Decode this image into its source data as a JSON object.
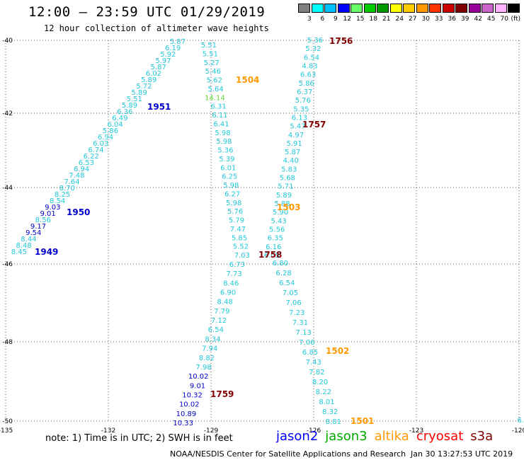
{
  "header": {
    "title": "12:00 — 23:59 UTC 01/29/2019",
    "subtitle": "12 hour collection of altimeter wave heights"
  },
  "legend": {
    "unit": "(ft)",
    "bins": [
      {
        "label": "3",
        "color": "#808080"
      },
      {
        "label": "6",
        "color": "#00ffff"
      },
      {
        "label": "9",
        "color": "#00bfff"
      },
      {
        "label": "12",
        "color": "#0000ff"
      },
      {
        "label": "15",
        "color": "#66ff66"
      },
      {
        "label": "18",
        "color": "#00cc00"
      },
      {
        "label": "21",
        "color": "#009900"
      },
      {
        "label": "24",
        "color": "#ffff00"
      },
      {
        "label": "27",
        "color": "#ffcc00"
      },
      {
        "label": "30",
        "color": "#ff9900"
      },
      {
        "label": "33",
        "color": "#ff3300"
      },
      {
        "label": "36",
        "color": "#cc0000"
      },
      {
        "label": "39",
        "color": "#800000"
      },
      {
        "label": "42",
        "color": "#990099"
      },
      {
        "label": "45",
        "color": "#cc66cc"
      },
      {
        "label": "70",
        "color": "#ffb3ff"
      },
      {
        "label": "",
        "color": "#000000"
      }
    ]
  },
  "map": {
    "lon_ticks": [
      "-135",
      "-132",
      "-129",
      "-126",
      "-123",
      "-120"
    ],
    "lat_ticks": [
      "-40",
      "-42",
      "-44",
      "-46",
      "-48",
      "-50"
    ],
    "colors": {
      "cyan": "#22c8d8",
      "blue": "#0000cc",
      "green": "#66dd33",
      "orange": "#ff9900",
      "maroon": "#800000"
    },
    "track_1951": [
      {
        "v": "5.87",
        "c": "cyan"
      },
      {
        "v": "6.19",
        "c": "cyan"
      },
      {
        "v": "5.92",
        "c": "cyan"
      },
      {
        "v": "5.97",
        "c": "cyan"
      },
      {
        "v": "5.87",
        "c": "cyan"
      },
      {
        "v": "6.02",
        "c": "cyan"
      },
      {
        "v": "5.89",
        "c": "cyan"
      },
      {
        "v": "5.72",
        "c": "cyan"
      },
      {
        "v": "5.89",
        "c": "cyan"
      },
      {
        "v": "5.51",
        "c": "cyan"
      },
      {
        "v": "5.89",
        "c": "cyan"
      },
      {
        "v": "6.36",
        "c": "cyan"
      },
      {
        "v": "6.49",
        "c": "cyan"
      },
      {
        "v": "6.04",
        "c": "cyan"
      },
      {
        "v": "5.86",
        "c": "cyan"
      },
      {
        "v": "6.94",
        "c": "cyan"
      },
      {
        "v": "6.03",
        "c": "cyan"
      },
      {
        "v": "6.74",
        "c": "cyan"
      },
      {
        "v": "6.22",
        "c": "cyan"
      },
      {
        "v": "6.53",
        "c": "cyan"
      },
      {
        "v": "6.94",
        "c": "cyan"
      },
      {
        "v": "7.48",
        "c": "cyan"
      },
      {
        "v": "7.64",
        "c": "cyan"
      },
      {
        "v": "8.70",
        "c": "cyan"
      },
      {
        "v": "8.25",
        "c": "cyan"
      },
      {
        "v": "8.54",
        "c": "cyan"
      },
      {
        "v": "9.03",
        "c": "blue"
      },
      {
        "v": "9.01",
        "c": "blue"
      },
      {
        "v": "8.56",
        "c": "cyan"
      },
      {
        "v": "9.17",
        "c": "blue"
      },
      {
        "v": "9.54",
        "c": "blue"
      },
      {
        "v": "8.44",
        "c": "cyan"
      },
      {
        "v": "8.48",
        "c": "cyan"
      },
      {
        "v": "8.45",
        "c": "cyan"
      }
    ],
    "track_1504": [
      {
        "v": "5.51",
        "c": "cyan"
      },
      {
        "v": "5.51",
        "c": "cyan"
      },
      {
        "v": "5.27",
        "c": "cyan"
      },
      {
        "v": "5.46",
        "c": "cyan"
      },
      {
        "v": "5.62",
        "c": "cyan"
      },
      {
        "v": "5.64",
        "c": "cyan"
      },
      {
        "v": "14.14",
        "c": "green"
      },
      {
        "v": "6.31",
        "c": "cyan"
      },
      {
        "v": "6.11",
        "c": "cyan"
      },
      {
        "v": "6.41",
        "c": "cyan"
      },
      {
        "v": "5.98",
        "c": "cyan"
      },
      {
        "v": "5.98",
        "c": "cyan"
      },
      {
        "v": "5.36",
        "c": "cyan"
      },
      {
        "v": "5.39",
        "c": "cyan"
      },
      {
        "v": "6.01",
        "c": "cyan"
      },
      {
        "v": "6.25",
        "c": "cyan"
      },
      {
        "v": "5.98",
        "c": "cyan"
      },
      {
        "v": "6.27",
        "c": "cyan"
      },
      {
        "v": "5.98",
        "c": "cyan"
      },
      {
        "v": "5.76",
        "c": "cyan"
      },
      {
        "v": "5.79",
        "c": "cyan"
      },
      {
        "v": "7.47",
        "c": "cyan"
      },
      {
        "v": "5.85",
        "c": "cyan"
      },
      {
        "v": "5.52",
        "c": "cyan"
      },
      {
        "v": "7.03",
        "c": "cyan"
      }
    ],
    "track_1759": [
      {
        "v": "6.73",
        "c": "cyan"
      },
      {
        "v": "7.73",
        "c": "cyan"
      },
      {
        "v": "8.46",
        "c": "cyan"
      },
      {
        "v": "6.90",
        "c": "cyan"
      },
      {
        "v": "8.48",
        "c": "cyan"
      },
      {
        "v": "7.79",
        "c": "cyan"
      },
      {
        "v": "7.12",
        "c": "cyan"
      },
      {
        "v": "6.54",
        "c": "cyan"
      },
      {
        "v": "8.34",
        "c": "cyan"
      },
      {
        "v": "7.94",
        "c": "cyan"
      },
      {
        "v": "8.82",
        "c": "cyan"
      },
      {
        "v": "7.98",
        "c": "cyan"
      },
      {
        "v": "10.02",
        "c": "blue"
      },
      {
        "v": "9.01",
        "c": "blue"
      },
      {
        "v": "10.32",
        "c": "blue"
      },
      {
        "v": "10.02",
        "c": "blue"
      },
      {
        "v": "10.89",
        "c": "blue"
      },
      {
        "v": "10.33",
        "c": "blue"
      }
    ],
    "track_1756": [
      {
        "v": "5.36",
        "c": "cyan"
      },
      {
        "v": "5.32",
        "c": "cyan"
      },
      {
        "v": "6.54",
        "c": "cyan"
      },
      {
        "v": "4.83",
        "c": "cyan"
      },
      {
        "v": "6.63",
        "c": "cyan"
      },
      {
        "v": "5.86",
        "c": "cyan"
      },
      {
        "v": "6.37",
        "c": "cyan"
      },
      {
        "v": "5.76",
        "c": "cyan"
      },
      {
        "v": "5.35",
        "c": "cyan"
      },
      {
        "v": "6.13",
        "c": "cyan"
      },
      {
        "v": "5.47",
        "c": "cyan"
      },
      {
        "v": "4.97",
        "c": "cyan"
      },
      {
        "v": "5.91",
        "c": "cyan"
      },
      {
        "v": "5.87",
        "c": "cyan"
      },
      {
        "v": "4.40",
        "c": "cyan"
      },
      {
        "v": "5.83",
        "c": "cyan"
      },
      {
        "v": "5.68",
        "c": "cyan"
      },
      {
        "v": "5.71",
        "c": "cyan"
      },
      {
        "v": "5.89",
        "c": "cyan"
      },
      {
        "v": "5.88",
        "c": "cyan"
      },
      {
        "v": "5.90",
        "c": "cyan"
      },
      {
        "v": "5.43",
        "c": "cyan"
      },
      {
        "v": "5.56",
        "c": "cyan"
      },
      {
        "v": "6.35",
        "c": "cyan"
      },
      {
        "v": "6.16",
        "c": "cyan"
      },
      {
        "v": "6.05",
        "c": "cyan"
      }
    ],
    "track_1501": [
      {
        "v": "6.80",
        "c": "cyan"
      },
      {
        "v": "6.28",
        "c": "cyan"
      },
      {
        "v": "6.54",
        "c": "cyan"
      },
      {
        "v": "7.05",
        "c": "cyan"
      },
      {
        "v": "7.06",
        "c": "cyan"
      },
      {
        "v": "7.23",
        "c": "cyan"
      },
      {
        "v": "7.31",
        "c": "cyan"
      },
      {
        "v": "7.13",
        "c": "cyan"
      },
      {
        "v": "7.06",
        "c": "cyan"
      },
      {
        "v": "6.85",
        "c": "cyan"
      },
      {
        "v": "7.43",
        "c": "cyan"
      },
      {
        "v": "7.82",
        "c": "cyan"
      },
      {
        "v": "8.20",
        "c": "cyan"
      },
      {
        "v": "8.22",
        "c": "cyan"
      },
      {
        "v": "8.01",
        "c": "cyan"
      },
      {
        "v": "8.32",
        "c": "cyan"
      },
      {
        "v": "8.81",
        "c": "cyan"
      }
    ],
    "track_edge": [
      {
        "v": "6.",
        "c": "cyan"
      }
    ],
    "time_labels": [
      {
        "t": "1756",
        "c": "maroon"
      },
      {
        "t": "1504",
        "c": "orange"
      },
      {
        "t": "1951",
        "c": "blue"
      },
      {
        "t": "1757",
        "c": "maroon"
      },
      {
        "t": "1503",
        "c": "orange"
      },
      {
        "t": "1950",
        "c": "blue"
      },
      {
        "t": "1949",
        "c": "blue"
      },
      {
        "t": "1758",
        "c": "maroon"
      },
      {
        "t": "1502",
        "c": "orange"
      },
      {
        "t": "1759",
        "c": "maroon"
      },
      {
        "t": "1501",
        "c": "orange"
      }
    ]
  },
  "footer": {
    "note": "note:  1) Time is in UTC;  2) SWH is in feet",
    "satellites": [
      {
        "name": "jason2",
        "color": "#0000ff"
      },
      {
        "name": "jason3",
        "color": "#00aa00"
      },
      {
        "name": "altika",
        "color": "#ff9900"
      },
      {
        "name": "cryosat",
        "color": "#ff0000"
      },
      {
        "name": "s3a",
        "color": "#800000"
      }
    ],
    "credit": "NOAA/NESDIS Center for Satellite Applications and Research",
    "generated": "Jan 30 13:27:53 UTC 2019"
  }
}
